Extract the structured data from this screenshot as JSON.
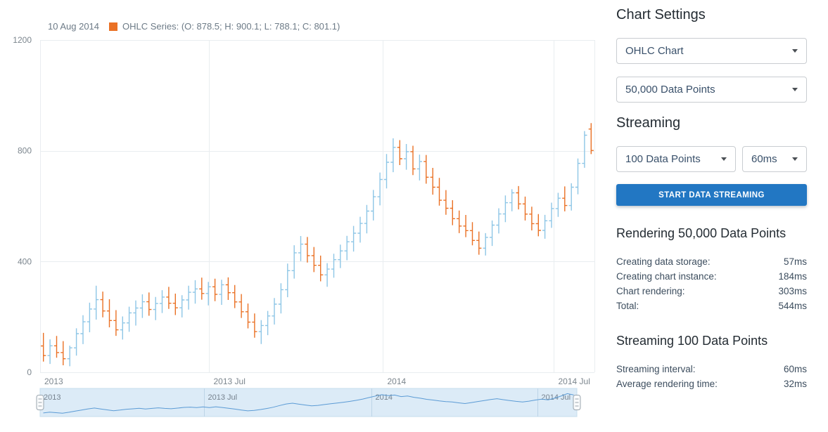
{
  "colors": {
    "rising": "#8ec6e6",
    "falling": "#ea7125",
    "accent": "#2277c3",
    "navigator_bg": "#dcebf7",
    "navigator_border": "#c6dcee",
    "navigator_line": "#5b9bd5",
    "gridline": "#e9edf0"
  },
  "legend": {
    "date": "10 Aug 2014",
    "series_label": "OHLC Series: (O: 878.5; H: 900.1; L: 788.1; C: 801.1)"
  },
  "panel": {
    "title": "Chart Settings",
    "chart_type": "OHLC Chart",
    "data_points": "50,000 Data Points",
    "streaming_title": "Streaming",
    "stream_points": "100 Data Points",
    "stream_interval": "60ms",
    "start_button_label": "START DATA STREAMING",
    "rendering_section": {
      "title": "Rendering 50,000 Data Points",
      "rows": [
        {
          "label": "Creating data storage:",
          "value": "57ms"
        },
        {
          "label": "Creating chart instance:",
          "value": "184ms"
        },
        {
          "label": "Chart rendering:",
          "value": "303ms"
        },
        {
          "label": "Total:",
          "value": "544ms"
        }
      ]
    },
    "streaming_section": {
      "title": "Streaming 100 Data Points",
      "rows": [
        {
          "label": "Streaming interval:",
          "value": "60ms"
        },
        {
          "label": "Average rendering time:",
          "value": "32ms"
        }
      ]
    }
  },
  "chart_data": {
    "type": "ohlc",
    "title": "",
    "ylim": [
      0,
      1200
    ],
    "y_ticks": [
      0,
      400,
      800,
      1200
    ],
    "x_ticks": [
      {
        "label": "2013",
        "index": -0.7
      },
      {
        "label": "2013 Jul",
        "index": 25.1
      },
      {
        "label": "2014",
        "index": 51.4
      },
      {
        "label": "2014 Jul",
        "index": 77.3
      }
    ],
    "navigator_labels": [
      "2013",
      "2013 Jul",
      "2014",
      "2014 Jul"
    ],
    "last_point": {
      "date": "10 Aug 2014",
      "o": 878.5,
      "h": 900.1,
      "l": 788.1,
      "c": 801.1
    },
    "ohlc": [
      [
        95.2,
        142.3,
        38.6,
        60.4
      ],
      [
        60.4,
        118.9,
        30.2,
        95.7
      ],
      [
        95.7,
        131.5,
        52.8,
        71.3
      ],
      [
        71.3,
        112.6,
        25.4,
        48.9
      ],
      [
        48.9,
        96.1,
        21.7,
        88.2
      ],
      [
        88.2,
        158.7,
        60.3,
        139.5
      ],
      [
        139.5,
        206.2,
        101.8,
        182.4
      ],
      [
        182.4,
        251.3,
        144.6,
        228.7
      ],
      [
        228.7,
        312.5,
        190.2,
        262.3
      ],
      [
        262.3,
        291.4,
        198.6,
        221.5
      ],
      [
        221.5,
        263.8,
        162.4,
        186.9
      ],
      [
        186.9,
        224.5,
        131.7,
        153.2
      ],
      [
        153.2,
        201.6,
        118.3,
        178.4
      ],
      [
        178.4,
        236.9,
        146.1,
        214.6
      ],
      [
        214.6,
        259.3,
        168.7,
        232.1
      ],
      [
        232.1,
        281.6,
        196.4,
        254.8
      ],
      [
        254.8,
        288.2,
        204.3,
        226.7
      ],
      [
        226.7,
        271.9,
        188.5,
        248.3
      ],
      [
        248.3,
        296.7,
        214.2,
        271.6
      ],
      [
        271.6,
        308.4,
        228.9,
        249.5
      ],
      [
        249.5,
        284.1,
        206.7,
        232.8
      ],
      [
        232.8,
        278.6,
        198.2,
        261.4
      ],
      [
        261.4,
        312.8,
        226.5,
        288.9
      ],
      [
        288.9,
        332.6,
        248.1,
        301.2
      ],
      [
        301.2,
        341.8,
        262.4,
        284.6
      ],
      [
        284.6,
        326.3,
        241.9,
        308.7
      ],
      [
        308.7,
        338.2,
        256.8,
        281.3
      ],
      [
        281.3,
        334.5,
        243.6,
        316.2
      ],
      [
        316.2,
        342.7,
        261.3,
        287.5
      ],
      [
        287.5,
        315.4,
        231.8,
        254.2
      ],
      [
        254.2,
        282.6,
        196.3,
        218.7
      ],
      [
        218.7,
        248.3,
        158.6,
        181.2
      ],
      [
        181.2,
        212.4,
        124.7,
        146.8
      ],
      [
        146.8,
        188.5,
        102.3,
        168.9
      ],
      [
        168.9,
        221.7,
        134.2,
        203.5
      ],
      [
        203.5,
        268.4,
        172.6,
        246.1
      ],
      [
        246.1,
        321.8,
        212.5,
        298.4
      ],
      [
        298.4,
        392.6,
        271.3,
        367.2
      ],
      [
        367.2,
        458.9,
        338.4,
        431.6
      ],
      [
        431.6,
        492.3,
        401.7,
        462.8
      ],
      [
        462.8,
        488.6,
        396.2,
        421.4
      ],
      [
        421.4,
        452.7,
        361.8,
        386.3
      ],
      [
        386.3,
        421.5,
        328.6,
        351.9
      ],
      [
        351.9,
        394.2,
        308.7,
        372.6
      ],
      [
        372.6,
        428.3,
        341.5,
        406.8
      ],
      [
        406.8,
        461.2,
        376.4,
        438.5
      ],
      [
        438.5,
        492.8,
        404.6,
        471.3
      ],
      [
        471.3,
        528.6,
        436.2,
        502.4
      ],
      [
        502.4,
        561.8,
        468.3,
        537.6
      ],
      [
        537.6,
        604.2,
        501.8,
        582.3
      ],
      [
        582.3,
        658.7,
        548.2,
        634.1
      ],
      [
        634.1,
        721.6,
        602.8,
        696.4
      ],
      [
        696.4,
        788.3,
        664.2,
        758.6
      ],
      [
        758.6,
        845.2,
        722.8,
        812.4
      ],
      [
        812.4,
        838.6,
        748.3,
        771.2
      ],
      [
        771.2,
        824.5,
        731.6,
        796.8
      ],
      [
        796.8,
        818.2,
        712.4,
        734.6
      ],
      [
        734.6,
        786.1,
        692.8,
        761.3
      ],
      [
        761.3,
        784.9,
        681.2,
        704.5
      ],
      [
        704.5,
        738.2,
        641.6,
        668.4
      ],
      [
        668.4,
        702.1,
        601.8,
        621.4
      ],
      [
        621.4,
        658.2,
        568.7,
        592.3
      ],
      [
        592.3,
        621.5,
        531.2,
        554.8
      ],
      [
        554.8,
        584.2,
        502.6,
        528.1
      ],
      [
        528.1,
        568.4,
        488.2,
        511.6
      ],
      [
        511.6,
        542.3,
        458.6,
        476.2
      ],
      [
        476.2,
        508.4,
        424.6,
        448.2
      ],
      [
        448.2,
        502.6,
        421.8,
        487.4
      ],
      [
        487.4,
        548.2,
        456.3,
        531.6
      ],
      [
        531.6,
        592.4,
        501.2,
        571.8
      ],
      [
        571.8,
        638.6,
        542.3,
        612.4
      ],
      [
        612.4,
        661.2,
        581.6,
        648.3
      ],
      [
        648.3,
        672.5,
        588.4,
        608.2
      ],
      [
        608.2,
        634.6,
        548.3,
        571.4
      ],
      [
        571.4,
        598.2,
        512.6,
        536.8
      ],
      [
        536.8,
        571.3,
        491.2,
        512.4
      ],
      [
        512.4,
        568.6,
        482.3,
        547.2
      ],
      [
        547.2,
        612.8,
        521.6,
        591.4
      ],
      [
        591.4,
        648.2,
        561.3,
        628.6
      ],
      [
        628.6,
        671.4,
        581.2,
        602.3
      ],
      [
        602.3,
        682.6,
        584.1,
        668.4
      ],
      [
        668.4,
        772.3,
        642.8,
        754.6
      ],
      [
        754.6,
        871.2,
        738.4,
        856.3
      ],
      [
        878.5,
        900.1,
        788.1,
        801.1
      ]
    ]
  }
}
